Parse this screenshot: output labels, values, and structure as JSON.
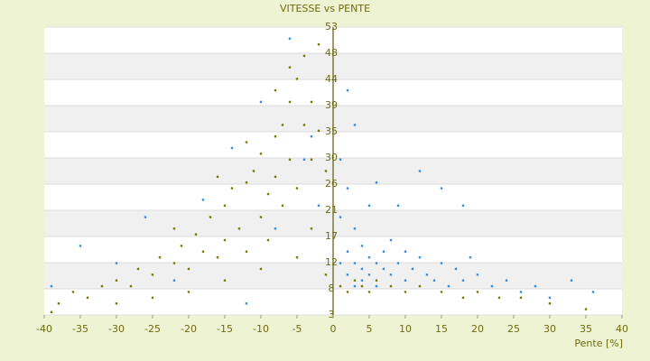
{
  "chart_data": {
    "type": "scatter",
    "title": "VITESSE vs PENTE",
    "x_label": "Pente [%]",
    "xlim": [
      -40,
      40
    ],
    "xticks": [
      -40,
      -35,
      -30,
      -25,
      -20,
      -15,
      -10,
      -5,
      0,
      5,
      10,
      15,
      20,
      25,
      30,
      35,
      40
    ],
    "ylim": [
      3,
      53
    ],
    "yticks": [
      53,
      {
        "value": 48.45,
        "label": "48"
      },
      {
        "value": 43.91,
        "label": "44"
      },
      {
        "value": 39.36,
        "label": "39"
      },
      {
        "value": 34.82,
        "label": "35"
      },
      {
        "value": 30.27,
        "label": "30"
      },
      {
        "value": 25.73,
        "label": "26"
      },
      {
        "value": 21.18,
        "label": "21"
      },
      {
        "value": 16.64,
        "label": "17"
      },
      {
        "value": 12.09,
        "label": "12"
      },
      {
        "value": 7.55,
        "label": "8"
      },
      3
    ],
    "grid": true,
    "series": [
      {
        "color": "#7a7a00",
        "x": [
          -38,
          -36,
          -34,
          -32,
          -30,
          -28,
          -27,
          -25,
          -24,
          -22,
          -21,
          -20,
          -19,
          -18,
          -17,
          -16,
          -15,
          -15,
          -14,
          -13,
          -12,
          -12,
          -11,
          -10,
          -10,
          -9,
          -9,
          -8,
          -8,
          -7,
          -7,
          -6,
          -6,
          -5,
          -5,
          -4,
          -4,
          -3,
          -3,
          -2,
          -2,
          -1,
          -25,
          -30,
          -20,
          -15,
          -10,
          -5,
          -3,
          -1,
          1,
          2,
          3,
          4,
          5,
          6,
          8,
          10,
          12,
          15,
          18,
          20,
          23,
          26,
          30,
          35,
          -39,
          -12,
          -8,
          -6,
          -16,
          -22
        ],
        "y": [
          5,
          7,
          6,
          8,
          9,
          8,
          11,
          10,
          13,
          12,
          15,
          11,
          17,
          14,
          20,
          13,
          22,
          16,
          25,
          18,
          26,
          14,
          28,
          20,
          31,
          24,
          16,
          34,
          27,
          22,
          36,
          30,
          40,
          25,
          44,
          36,
          48,
          40,
          30,
          50,
          35,
          28,
          6,
          5,
          7,
          9,
          11,
          13,
          18,
          10,
          8,
          7,
          9,
          8,
          7,
          9,
          8,
          7,
          8,
          7,
          6,
          7,
          6,
          6,
          5,
          4,
          3.5,
          33,
          42,
          46,
          27,
          18
        ]
      },
      {
        "color": "#3a8ad8",
        "x": [
          -39,
          -35,
          -30,
          -26,
          -22,
          -18,
          -14,
          -12,
          -10,
          -8,
          -6,
          -4,
          -2,
          1,
          1,
          1,
          2,
          2,
          2,
          3,
          3,
          3,
          4,
          4,
          4,
          5,
          5,
          5,
          6,
          6,
          7,
          7,
          8,
          8,
          9,
          10,
          10,
          11,
          12,
          13,
          14,
          15,
          16,
          17,
          18,
          19,
          20,
          22,
          24,
          26,
          28,
          30,
          33,
          36,
          3,
          6,
          9,
          12,
          15,
          18,
          2,
          -3
        ],
        "y": [
          8,
          15,
          12,
          20,
          9,
          23,
          32,
          5,
          40,
          18,
          51,
          30,
          22,
          12,
          20,
          30,
          14,
          10,
          25,
          12,
          8,
          18,
          11,
          15,
          9,
          13,
          10,
          22,
          12,
          8,
          14,
          11,
          10,
          16,
          12,
          9,
          14,
          11,
          13,
          10,
          9,
          12,
          8,
          11,
          9,
          13,
          10,
          8,
          9,
          7,
          8,
          6,
          9,
          7,
          36,
          26,
          22,
          28,
          25,
          22,
          42,
          34
        ]
      }
    ]
  }
}
